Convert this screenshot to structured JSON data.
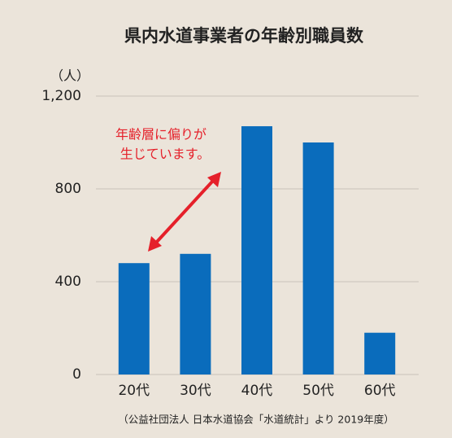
{
  "chart_data": {
    "type": "bar",
    "title": "県内水道事業者の年齢別職員数",
    "y_label": "（人）",
    "categories": [
      "20代",
      "30代",
      "40代",
      "50代",
      "60代"
    ],
    "values": [
      480,
      520,
      1070,
      1000,
      180
    ],
    "color": "#0a6cbc",
    "ylim": [
      0,
      1200
    ],
    "yticks": [
      0,
      400,
      800,
      {
        "value": 1200,
        "label": "1,200"
      }
    ],
    "grid": true,
    "annotation": [
      "年齢層に偏りが",
      "生じています。"
    ],
    "annotation_color": "#e5202a",
    "source": "（公益社団法人 日本水道協会「水道統計」より 2019年度）"
  }
}
